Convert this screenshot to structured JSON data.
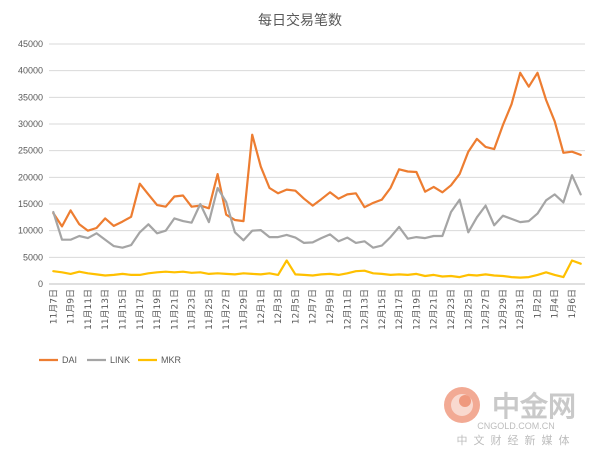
{
  "chart_data": {
    "type": "line",
    "title": "每日交易笔数",
    "xlabel": "",
    "ylabel": "",
    "ylim": [
      0,
      45000
    ],
    "yticks": [
      0,
      5000,
      10000,
      15000,
      20000,
      25000,
      30000,
      35000,
      40000,
      45000
    ],
    "ytick_labels": [
      "0",
      "5000",
      "10000",
      "15000",
      "20000",
      "25000",
      "30000",
      "35000",
      "40000",
      "45000"
    ],
    "grid": true,
    "legend_position": "bottom-left",
    "x": [
      "11月7日",
      "11月8日",
      "11月9日",
      "11月10日",
      "11月11日",
      "11月12日",
      "11月13日",
      "11月14日",
      "11月15日",
      "11月16日",
      "11月17日",
      "11月18日",
      "11月19日",
      "11月20日",
      "11月21日",
      "11月22日",
      "11月23日",
      "11月24日",
      "11月25日",
      "11月26日",
      "11月27日",
      "11月28日",
      "11月29日",
      "11月30日",
      "12月1日",
      "12月2日",
      "12月3日",
      "12月4日",
      "12月5日",
      "12月6日",
      "12月7日",
      "12月8日",
      "12月9日",
      "12月10日",
      "12月11日",
      "12月12日",
      "12月13日",
      "12月14日",
      "12月15日",
      "12月16日",
      "12月17日",
      "12月18日",
      "12月19日",
      "12月20日",
      "12月21日",
      "12月22日",
      "12月23日",
      "12月24日",
      "12月25日",
      "12月26日",
      "12月27日",
      "12月28日",
      "12月29日",
      "12月30日",
      "12月31日",
      "1月1日",
      "1月2日",
      "1月3日",
      "1月4日",
      "1月5日",
      "1月6日",
      "1月7日"
    ],
    "xtick_labels": [
      "11月7日",
      "11月9日",
      "11月11日",
      "11月13日",
      "11月15日",
      "11月17日",
      "11月19日",
      "11月21日",
      "11月23日",
      "11月25日",
      "11月27日",
      "11月29日",
      "12月1日",
      "12月3日",
      "12月5日",
      "12月7日",
      "12月9日",
      "12月11日",
      "12月13日",
      "12月15日",
      "12月17日",
      "12月19日",
      "12月21日",
      "12月23日",
      "12月25日",
      "12月27日",
      "12月29日",
      "12月31日",
      "1月2日",
      "1月4日",
      "1月6日"
    ],
    "series": [
      {
        "name": "DAI",
        "color": "#ED7D31",
        "values": [
          13300,
          10800,
          13800,
          11200,
          10000,
          10500,
          12300,
          10900,
          11700,
          12600,
          18800,
          16800,
          14800,
          14500,
          16400,
          16600,
          14500,
          14700,
          14200,
          20600,
          13000,
          12000,
          11800,
          28000,
          22000,
          18000,
          17000,
          17700,
          17500,
          16000,
          14700,
          15900,
          17200,
          16000,
          16800,
          17000,
          14400,
          15200,
          15800,
          18000,
          21500,
          21100,
          21000,
          17300,
          18200,
          17200,
          18500,
          20600,
          24800,
          27200,
          25700,
          25300,
          29800,
          33700,
          39600,
          37000,
          39600,
          34500,
          30500,
          24600,
          24800,
          24200
        ]
      },
      {
        "name": "LINK",
        "color": "#A5A5A5",
        "values": [
          13500,
          8300,
          8300,
          9000,
          8600,
          9500,
          8300,
          7100,
          6800,
          7300,
          9700,
          11200,
          9500,
          10000,
          12300,
          11800,
          11500,
          15000,
          11600,
          18000,
          15400,
          9700,
          8200,
          10000,
          10100,
          8800,
          8800,
          9200,
          8700,
          7700,
          7800,
          8600,
          9300,
          8000,
          8700,
          7700,
          8000,
          6800,
          7200,
          8800,
          10700,
          8500,
          8800,
          8600,
          9000,
          9000,
          13500,
          15800,
          9700,
          12500,
          14700,
          11000,
          12800,
          12200,
          11600,
          11800,
          13200,
          15700,
          16800,
          15300,
          20400,
          16800
        ]
      },
      {
        "name": "MKR",
        "color": "#FFC000",
        "values": [
          2400,
          2200,
          1900,
          2300,
          2000,
          1800,
          1600,
          1700,
          1900,
          1700,
          1700,
          2000,
          2200,
          2300,
          2200,
          2300,
          2100,
          2200,
          1900,
          2000,
          1900,
          1800,
          2000,
          1900,
          1800,
          2000,
          1700,
          4400,
          1800,
          1700,
          1600,
          1800,
          1900,
          1700,
          2000,
          2400,
          2500,
          2000,
          1900,
          1700,
          1800,
          1700,
          1900,
          1500,
          1700,
          1400,
          1500,
          1300,
          1700,
          1600,
          1800,
          1600,
          1500,
          1300,
          1200,
          1300,
          1700,
          2200,
          1700,
          1300,
          4400,
          3800
        ]
      }
    ]
  },
  "watermark": {
    "name": "中金网",
    "url": "CNGOLD.COM.CN",
    "slogan": "中文财经新媒体",
    "logo_color": "#e8643c"
  }
}
